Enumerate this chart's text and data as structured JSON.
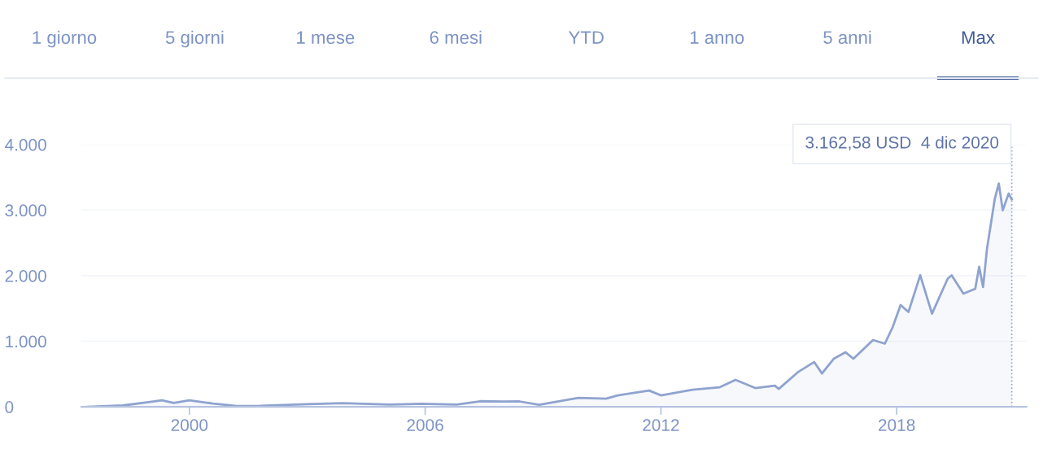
{
  "chart_data": {
    "type": "area",
    "x": [
      1997.4,
      1998.3,
      1999.0,
      1999.3,
      1999.6,
      2000.0,
      2000.6,
      2001.2,
      2001.8,
      2003.0,
      2003.9,
      2005.1,
      2005.9,
      2006.8,
      2007.4,
      2008.0,
      2008.4,
      2008.9,
      2009.9,
      2010.6,
      2010.9,
      2011.7,
      2012.0,
      2012.8,
      2013.5,
      2013.9,
      2014.4,
      2014.9,
      2015.0,
      2015.5,
      2015.9,
      2016.1,
      2016.4,
      2016.7,
      2016.9,
      2017.4,
      2017.7,
      2017.9,
      2018.1,
      2018.3,
      2018.6,
      2018.9,
      2019.3,
      2019.4,
      2019.7,
      2020.0,
      2020.1,
      2020.2,
      2020.3,
      2020.5,
      2020.6,
      2020.7,
      2020.85,
      2020.93
    ],
    "series": [
      {
        "color": "#8fa3cf",
        "values": [
          0,
          20,
          75,
          100,
          60,
          100,
          50,
          12,
          15,
          40,
          55,
          35,
          45,
          35,
          85,
          80,
          82,
          31,
          137,
          124,
          174,
          248,
          174,
          260,
          298,
          410,
          286,
          323,
          273,
          534,
          683,
          509,
          733,
          832,
          733,
          1019,
          963,
          1217,
          1553,
          1446,
          2006,
          1420,
          1955,
          2006,
          1726,
          1800,
          2136,
          1826,
          2413,
          3180,
          3406,
          2998,
          3254,
          3162.58
        ]
      }
    ],
    "xlim": [
      1997.25,
      2021.3
    ],
    "xticks": [
      2000,
      2006,
      2012,
      2018
    ],
    "ylim": [
      0,
      4000
    ],
    "yticks": [
      {
        "value": 0,
        "label": "0"
      },
      {
        "value": 1000,
        "label": "1.000"
      },
      {
        "value": 2000,
        "label": "2.000"
      },
      {
        "value": 3000,
        "label": "3.000"
      },
      {
        "value": 4000,
        "label": "4.000"
      }
    ],
    "grid": "y",
    "ref_lines": [
      {
        "axis": "x",
        "value": 2020.93,
        "color": "#8fa3cf",
        "line_style": "dotted"
      }
    ],
    "annotations": [
      "3.162,58 USD  4 dic 2020",
      "1 giorno",
      "5 giorni",
      "1 mese",
      "6 mesi",
      "YTD",
      "1 anno",
      "5 anni",
      "Max"
    ]
  }
}
